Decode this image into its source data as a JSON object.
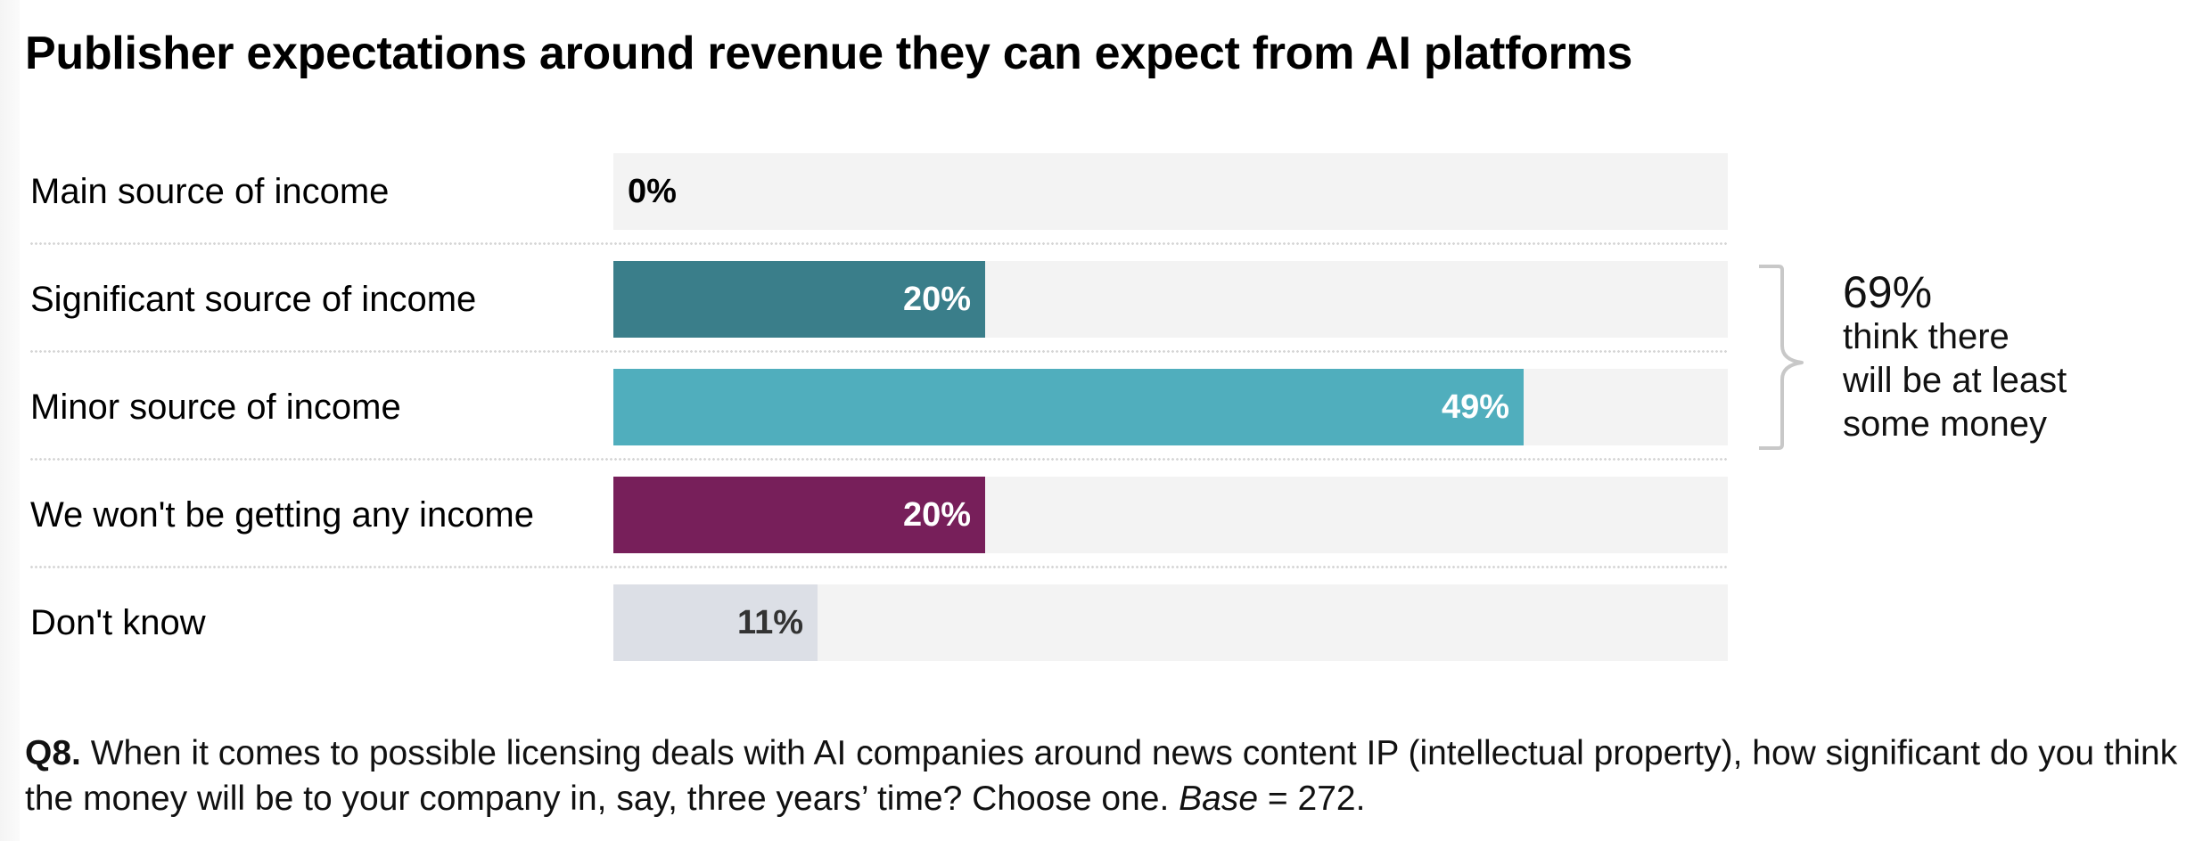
{
  "title": "Publisher expectations around revenue they can expect from AI platforms",
  "chart_data": {
    "type": "bar",
    "orientation": "horizontal",
    "title": "Publisher expectations around revenue they can expect from AI platforms",
    "xlabel": "",
    "ylabel": "",
    "xlim": [
      0,
      60
    ],
    "grid": false,
    "categories": [
      "Main source of income",
      "Significant source of income",
      "Minor source of income",
      "We won't be getting any income",
      "Don't know"
    ],
    "values": [
      0,
      20,
      49,
      20,
      11
    ],
    "value_labels": [
      "0%",
      "20%",
      "49%",
      "20%",
      "11%"
    ],
    "bar_colors": [
      "#3a7e8a",
      "#3a7e8a",
      "#50aebd",
      "#771f5a",
      "#dcdfe6"
    ],
    "label_colors": [
      "#000000",
      "#ffffff",
      "#ffffff",
      "#ffffff",
      "#333333"
    ],
    "track_color": "#f3f3f3",
    "annotation": {
      "value": "69%",
      "lines": [
        "think there",
        "will be at least",
        "some money"
      ],
      "brackets_categories": [
        "Significant source of income",
        "Minor source of income"
      ]
    }
  },
  "footnote": {
    "question_id": "Q8.",
    "question_text": " When it comes to possible licensing deals with AI companies around news content IP (intellectual property), how significant do you think the money will be to your company in, say, three years’ time? Choose one. ",
    "base_label": "Base",
    "base_value": " = 272."
  }
}
